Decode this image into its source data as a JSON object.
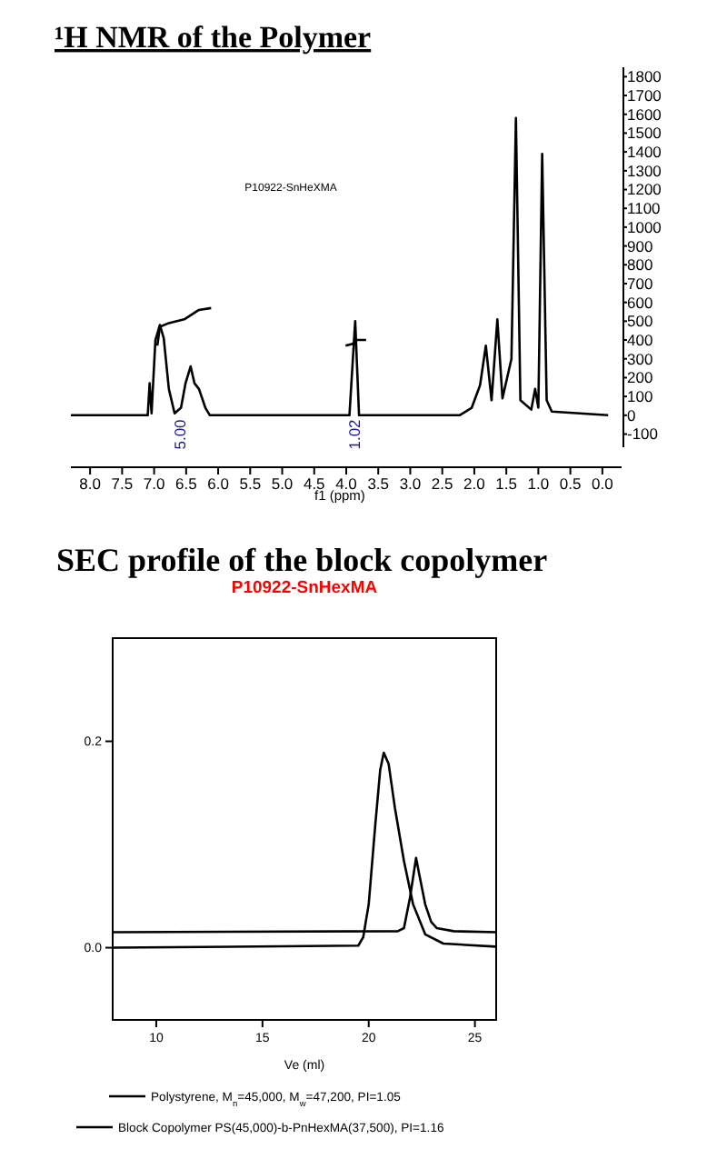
{
  "chart_data": [
    {
      "type": "line",
      "title": "¹H NMR of the Polymer",
      "xlabel": "f1 (ppm)",
      "xlim": [
        8.3,
        -0.3
      ],
      "ylim": [
        -170,
        1850
      ],
      "xticks": [
        {
          "value": 8,
          "label": "8.0"
        },
        7.5,
        {
          "value": 7,
          "label": "7.0"
        },
        6.5,
        {
          "value": 6,
          "label": "6.0"
        },
        5.5,
        {
          "value": 5,
          "label": "5.0"
        },
        4.5,
        {
          "value": 4,
          "label": "4.0"
        },
        3.5,
        {
          "value": 3,
          "label": "3.0"
        },
        2.5,
        {
          "value": 2,
          "label": "2.0"
        },
        1.5,
        {
          "value": 1,
          "label": "1.0"
        },
        0.5,
        {
          "value": 0,
          "label": "0.0"
        }
      ],
      "yticks": [
        -100,
        0,
        100,
        200,
        300,
        400,
        500,
        600,
        700,
        800,
        900,
        1000,
        1100,
        1200,
        1300,
        1400,
        1500,
        1600,
        1700,
        1800
      ],
      "series": [
        {
          "color": "#000000",
          "x": [
            8.3,
            7.1,
            7.07,
            7.04,
            6.98,
            6.91,
            6.85,
            6.77,
            6.68,
            6.58,
            6.51,
            6.43,
            6.37,
            6.3,
            6.2,
            6.13,
            3.95,
            3.86,
            3.8,
            2.23,
            2.04,
            1.91,
            1.82,
            1.73,
            1.64,
            1.56,
            1.42,
            1.35,
            1.28,
            1.11,
            1.05,
            1.0,
            0.94,
            0.87,
            0.79,
            -0.09
          ],
          "values": [
            0,
            0,
            170,
            10,
            400,
            480,
            410,
            140,
            10,
            40,
            170,
            260,
            170,
            140,
            40,
            0,
            0,
            500,
            0,
            0,
            40,
            160,
            370,
            80,
            510,
            90,
            300,
            1580,
            80,
            30,
            140,
            40,
            1390,
            80,
            20,
            0
          ]
        },
        {
          "color": "#000000",
          "x": [
            6.95,
            6.91,
            6.77,
            6.53,
            6.3,
            6.11
          ],
          "values": [
            370,
            470,
            490,
            510,
            560,
            570
          ]
        },
        {
          "color": "#000000",
          "x": [
            4.01,
            3.9,
            3.84,
            3.69
          ],
          "values": [
            370,
            380,
            400,
            400
          ]
        }
      ],
      "annotations": [
        "P10922-SnHeXMA",
        "5.00",
        "1.02"
      ]
    },
    {
      "type": "line",
      "title": "SEC profile of the block copolymer",
      "subtitle": "P10922-SnHexMA",
      "xlabel": "Ve (ml)",
      "xlim": [
        7.95,
        26
      ],
      "ylim": [
        -0.07,
        0.3
      ],
      "xticks": [
        10,
        15,
        20,
        25
      ],
      "yticks": [
        {
          "value": 0,
          "label": "0.0"
        },
        0.2
      ],
      "legend": "bottom",
      "series": [
        {
          "name": "Polystyrene, M$_{n}$=45,000, M$_{w}$=47,200, PI=1.05",
          "color": "#000000",
          "x": [
            7.95,
            21.37,
            21.66,
            21.94,
            22.23,
            22.37,
            22.66,
            22.94,
            23.2,
            24.0,
            26
          ],
          "values": [
            0.015,
            0.016,
            0.019,
            0.048,
            0.087,
            0.072,
            0.042,
            0.025,
            0.019,
            0.016,
            0.015
          ]
        },
        {
          "name": "Block Copolymer PS(45,000)-b-PnHexMA(37,500),  PI=1.16",
          "color": "#000000",
          "x": [
            7.95,
            19.51,
            19.74,
            20.0,
            20.31,
            20.54,
            20.71,
            20.94,
            21.23,
            21.66,
            22.09,
            22.66,
            23.51,
            26
          ],
          "values": [
            0,
            0.002,
            0.01,
            0.042,
            0.119,
            0.172,
            0.189,
            0.178,
            0.136,
            0.084,
            0.042,
            0.013,
            0.004,
            0.001
          ]
        }
      ]
    }
  ]
}
